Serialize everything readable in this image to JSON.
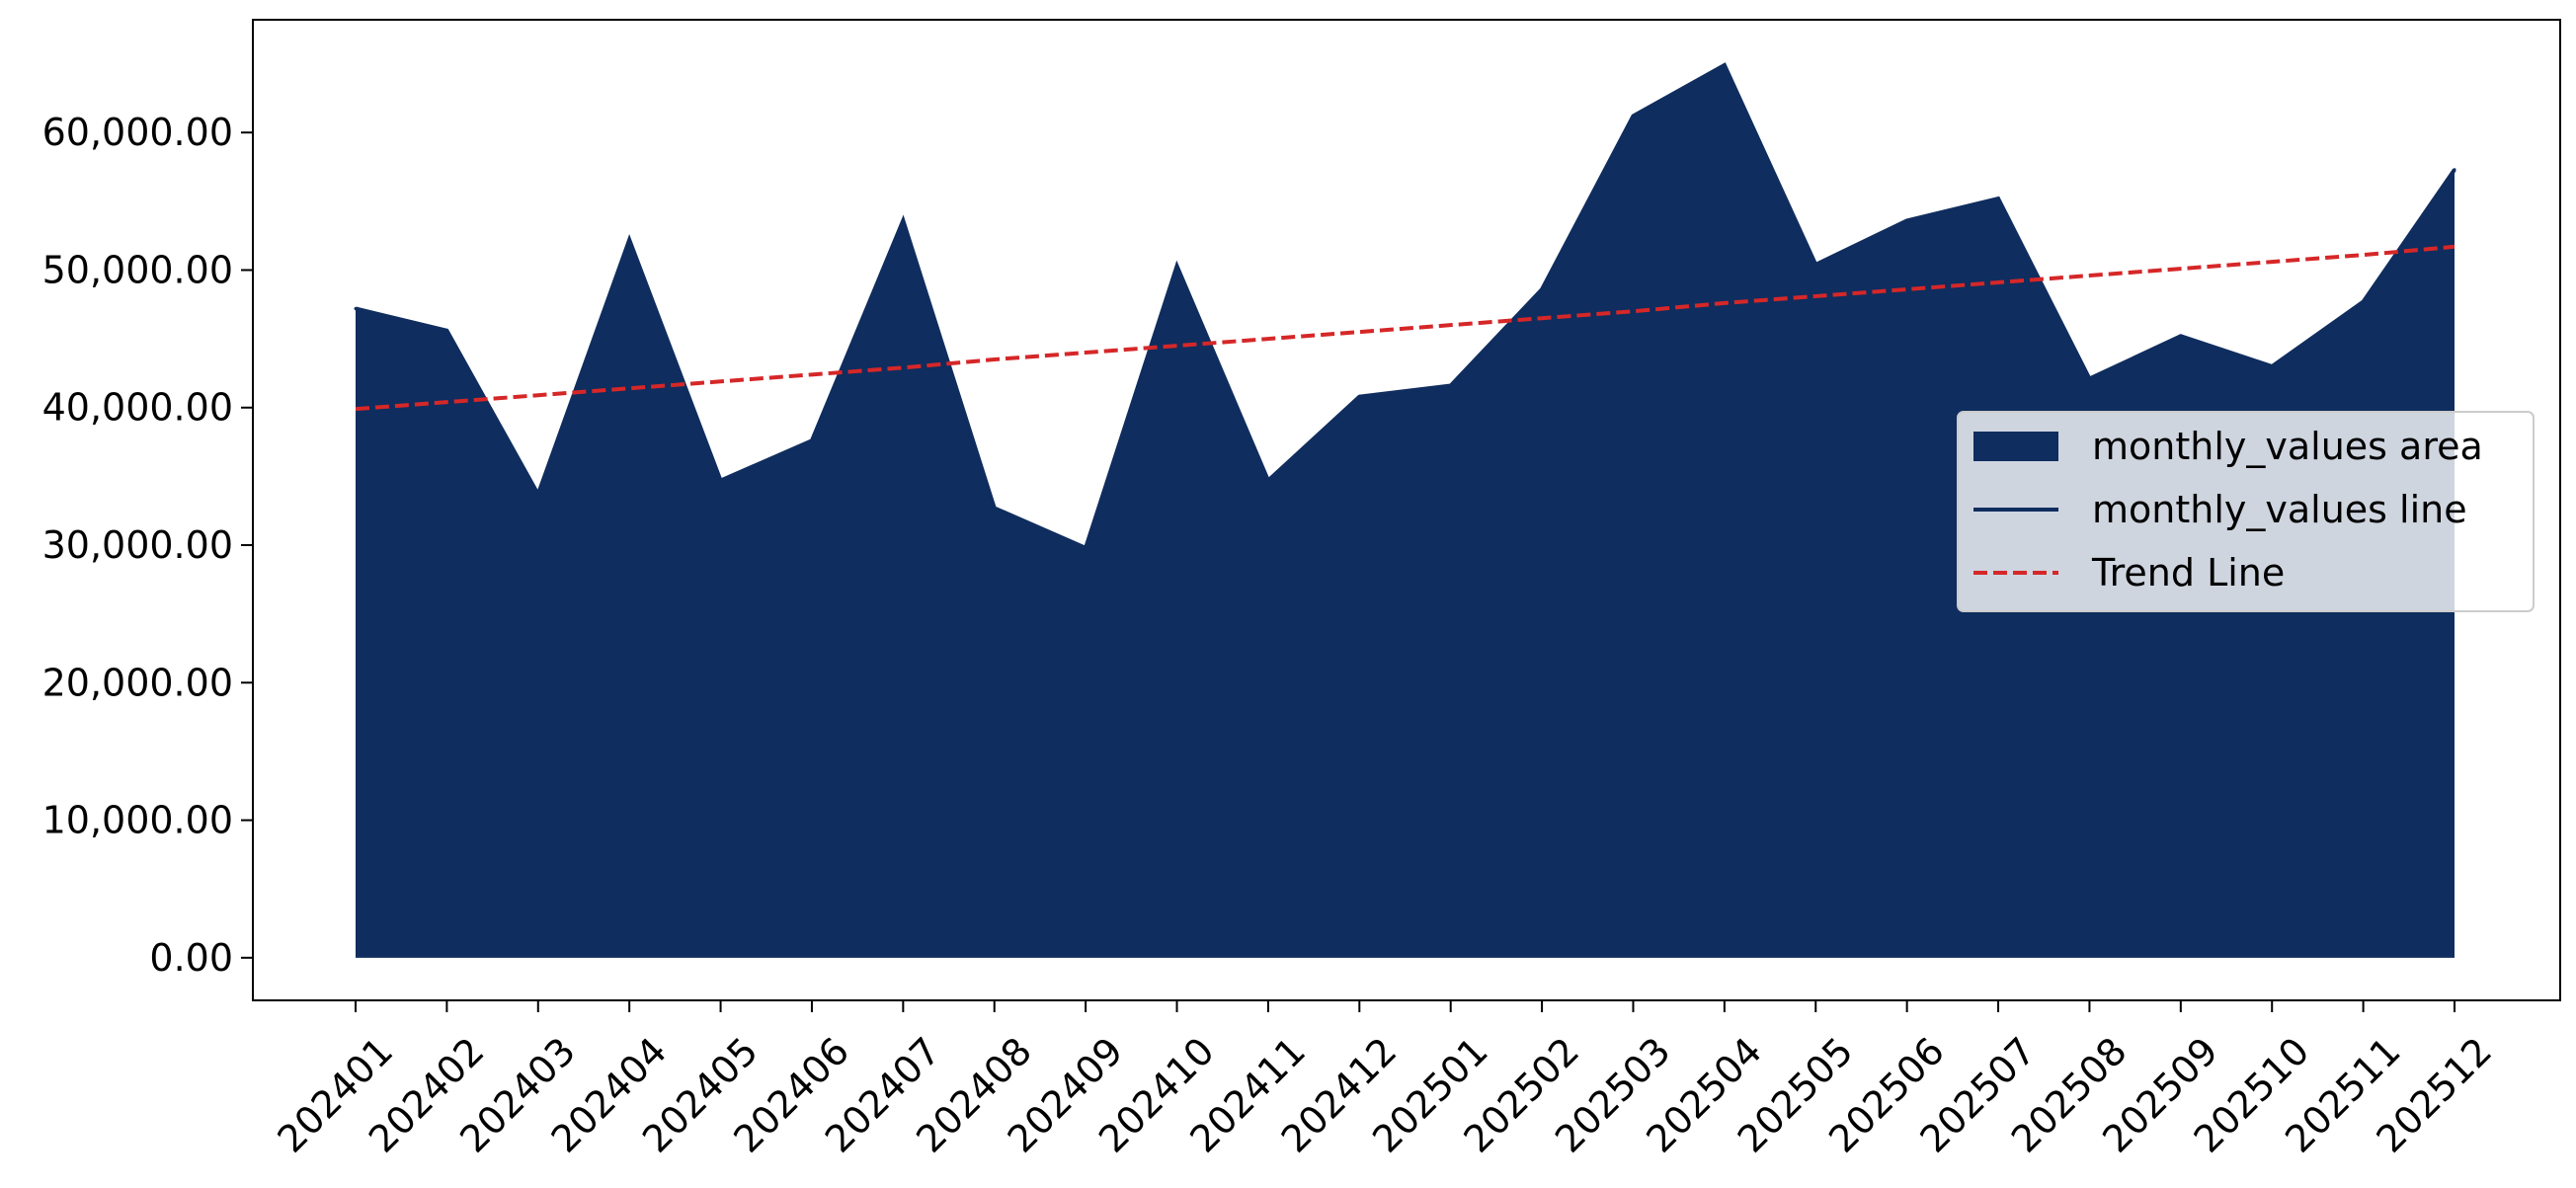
{
  "chart_data": {
    "type": "area",
    "title": "",
    "xlabel": "",
    "ylabel": "",
    "categories": [
      "202401",
      "202402",
      "202403",
      "202404",
      "202405",
      "202406",
      "202407",
      "202408",
      "202409",
      "202410",
      "202411",
      "202412",
      "202501",
      "202502",
      "202503",
      "202504",
      "202505",
      "202506",
      "202507",
      "202508",
      "202509",
      "202510",
      "202511",
      "202512"
    ],
    "series": [
      {
        "name": "monthly_values area",
        "kind": "area",
        "color": "#0f2d5e",
        "values": [
          47200,
          45600,
          33700,
          52200,
          34700,
          37600,
          53600,
          32700,
          29800,
          50300,
          34700,
          40800,
          41600,
          48600,
          61200,
          64900,
          50400,
          53600,
          55200,
          42100,
          45200,
          43000,
          47700,
          57300
        ]
      },
      {
        "name": "monthly_values line",
        "kind": "line",
        "color": "#0f2d5e",
        "values": [
          47200,
          45600,
          33700,
          52200,
          34700,
          37600,
          53600,
          32700,
          29800,
          50300,
          34700,
          40800,
          41600,
          48600,
          61200,
          64900,
          50400,
          53600,
          55200,
          42100,
          45200,
          43000,
          47700,
          57300
        ]
      },
      {
        "name": "Trend Line",
        "kind": "trend",
        "color": "#d62728",
        "style": "dashed",
        "values": [
          39900,
          40400,
          40900,
          41400,
          41900,
          42400,
          42900,
          43500,
          44000,
          44500,
          45000,
          45500,
          46000,
          46500,
          47000,
          47600,
          48100,
          48600,
          49100,
          49600,
          50100,
          50600,
          51100,
          51700
        ]
      }
    ],
    "yticks": [
      0,
      10000,
      20000,
      30000,
      40000,
      50000,
      60000
    ],
    "ytick_labels": [
      "0.00",
      "10,000.00",
      "20,000.00",
      "30,000.00",
      "40,000.00",
      "50,000.00",
      "60,000.00"
    ],
    "ylim": [
      -3100,
      68200
    ],
    "grid": false,
    "legend_position": "center-right",
    "legend": [
      "monthly_values area",
      "monthly_values line",
      "Trend Line"
    ]
  }
}
